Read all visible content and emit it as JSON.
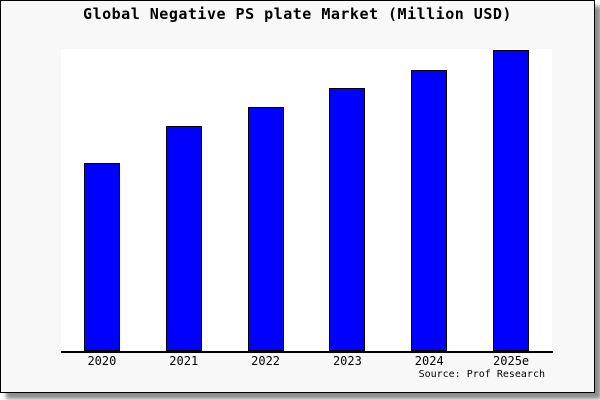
{
  "chart": {
    "title": "Global Negative PS plate Market (Million USD)",
    "source_label": "Source: Prof Research",
    "colors": {
      "bar_fill": "#0000ff",
      "bar_border": "#000000",
      "plot_background": "#ffffff",
      "figure_background": "#f8f8f8",
      "frame_border": "#000000",
      "text": "#000000"
    }
  },
  "chart_data": {
    "type": "bar",
    "title": "Global Negative PS plate Market (Million USD)",
    "categories": [
      "2020",
      "2021",
      "2022",
      "2023",
      "2024",
      "2025e"
    ],
    "values": [
      62.5,
      74.9,
      81.2,
      87.5,
      93.5,
      100
    ],
    "value_note": "No y-axis or data labels shown; values estimated from bar heights as percent of the 2025e bar.",
    "xlabel": "",
    "ylabel": "",
    "legend": false,
    "grid": false,
    "y_axis_visible": false,
    "annotations": [
      "Source: Prof Research"
    ]
  }
}
